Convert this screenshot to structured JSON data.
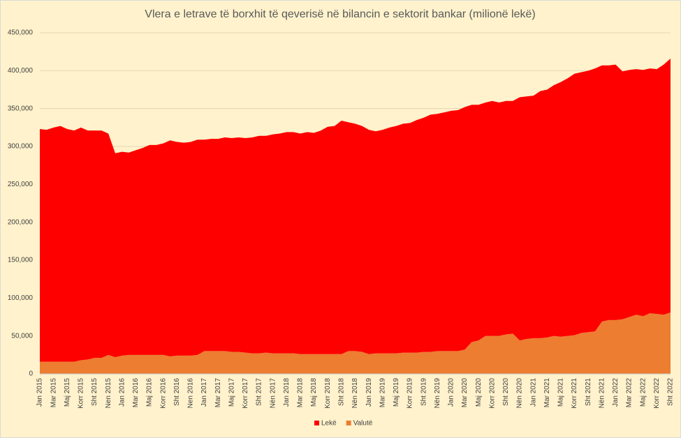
{
  "chart_data": {
    "type": "stacked_area",
    "title": "Vlera e letrave të borxhit të qeverisë në bilancin e sektorit bankar (milionë lekë)",
    "categories": [
      "Jan 2015",
      null,
      "Mar 2015",
      null,
      "Maj 2015",
      null,
      "Korr 2015",
      null,
      "Sht 2015",
      null,
      "Nen 2015",
      null,
      "Jan 2016",
      null,
      "Mar 2016",
      null,
      "Maj 2016",
      null,
      "Korr 2016",
      null,
      "Sht 2016",
      null,
      "Nen 2016",
      null,
      "Jan 2017",
      null,
      "Mar 2017",
      null,
      "Maj 2017",
      null,
      "Korr 2017",
      null,
      "Sht 2017",
      null,
      "Nën 2017",
      null,
      "Jan 2018",
      null,
      "Mar 2018",
      null,
      "Maj 2018",
      null,
      "Korr 2018",
      null,
      "Sht 2018",
      null,
      "Nën 2018",
      null,
      "Jan 2019",
      null,
      "Mar 2019",
      null,
      "Maj 2019",
      null,
      "Korr 2019",
      null,
      "Sht 2019",
      null,
      "Nën 2019",
      null,
      "Jan 2020",
      null,
      "Mar 2020",
      null,
      "Maj 2020",
      null,
      "Korr 2020",
      null,
      "Sht 2020",
      null,
      "Nën 2020",
      null,
      "Jan 2021",
      null,
      "Mar 2021",
      null,
      "Maj 2021",
      null,
      "Korr 2021",
      null,
      "Sht 2021",
      null,
      "Nën 2021",
      null,
      "Jan 2022",
      null,
      "Mar 2022",
      null,
      "Maj 2022",
      null,
      "Korr 2022",
      null,
      "Sht 2022"
    ],
    "series": [
      {
        "name": "Valutë",
        "color": "#ed7d31",
        "values": [
          16000,
          16000,
          16000,
          16000,
          16000,
          16000,
          18000,
          19000,
          21000,
          21000,
          25000,
          22000,
          24000,
          25000,
          25000,
          25000,
          25000,
          25000,
          25000,
          23000,
          24000,
          24000,
          24000,
          25000,
          30000,
          30000,
          30000,
          30000,
          29000,
          29000,
          28000,
          27000,
          27000,
          28000,
          27000,
          27000,
          27000,
          27000,
          26000,
          26000,
          26000,
          26000,
          26000,
          26000,
          26000,
          30000,
          30000,
          29000,
          26000,
          27000,
          27000,
          27000,
          27000,
          28000,
          28000,
          28000,
          29000,
          29000,
          30000,
          30000,
          30000,
          30000,
          32000,
          42000,
          44000,
          50000,
          50000,
          50000,
          52000,
          53000,
          44000,
          46000,
          47000,
          47000,
          48000,
          50000,
          49000,
          50000,
          51000,
          54000,
          55000,
          56000,
          69000,
          71000,
          71000,
          72000,
          75000,
          78000,
          76000,
          80000,
          79000,
          78000,
          81000
        ]
      },
      {
        "name": "Lekë",
        "color": "#ff0000",
        "values": [
          307000,
          306000,
          309000,
          311000,
          307000,
          305000,
          307000,
          302000,
          300000,
          300000,
          292000,
          269000,
          269000,
          267000,
          270000,
          273000,
          277000,
          277000,
          279000,
          285000,
          282000,
          281000,
          282000,
          284000,
          279000,
          280000,
          280000,
          282000,
          282000,
          283000,
          283000,
          285000,
          287000,
          286000,
          289000,
          290000,
          292000,
          292000,
          291000,
          293000,
          292000,
          295000,
          300000,
          301000,
          308000,
          302000,
          300000,
          298000,
          296000,
          293000,
          295000,
          298000,
          300000,
          302000,
          303000,
          307000,
          309000,
          313000,
          313000,
          315000,
          317000,
          318000,
          320000,
          313000,
          311000,
          308000,
          310000,
          308000,
          308000,
          307000,
          321000,
          320000,
          320000,
          326000,
          327000,
          331000,
          336000,
          340000,
          345000,
          344000,
          345000,
          347000,
          338000,
          336000,
          337000,
          327000,
          326000,
          324000,
          325000,
          323000,
          323000,
          330000,
          335000
        ]
      }
    ],
    "ylim": [
      0,
      450000
    ],
    "yticks": [
      0,
      {
        "value": 50000,
        "label": "50,000"
      },
      {
        "value": 100000,
        "label": "100,000"
      },
      {
        "value": 150000,
        "label": "150,000"
      },
      {
        "value": 200000,
        "label": "200,000"
      },
      {
        "value": 250000,
        "label": "250,000"
      },
      {
        "value": 300000,
        "label": "300,000"
      },
      {
        "value": 350000,
        "label": "350,000"
      },
      {
        "value": 400000,
        "label": "400,000"
      },
      {
        "value": 450000,
        "label": "450,000"
      }
    ],
    "grid": true,
    "legend": "bottom"
  }
}
